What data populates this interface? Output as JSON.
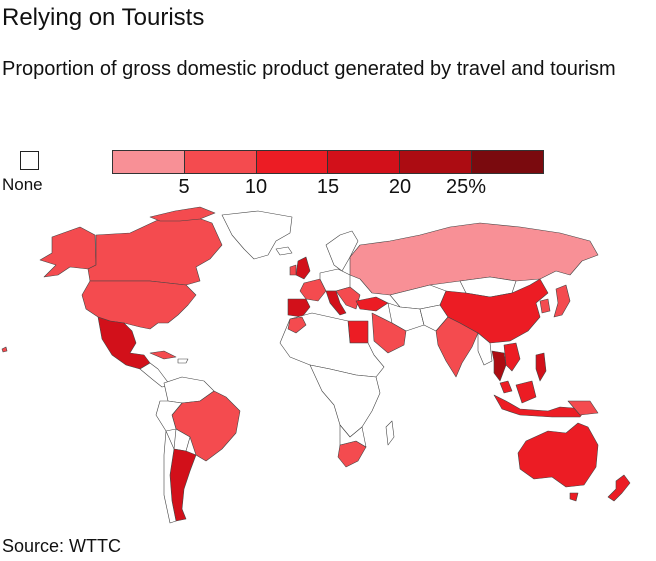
{
  "title": "Relying on Tourists",
  "subtitle": "Proportion of gross domestic product generated by travel and tourism",
  "legend": {
    "none_label": "None",
    "colors": [
      "#f89096",
      "#f44b4f",
      "#ec1c24",
      "#d2101a",
      "#ac0c12",
      "#7a0a0e"
    ],
    "ticks": [
      "5",
      "10",
      "15",
      "20",
      "25%"
    ]
  },
  "source": "Source: WTTC",
  "colors": {
    "none": "#ffffff",
    "border": "#444444"
  }
}
